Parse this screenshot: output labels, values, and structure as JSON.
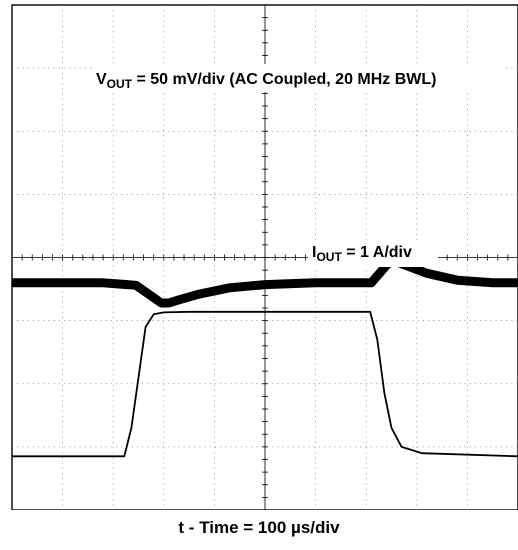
{
  "chart_data": {
    "type": "line",
    "grid": true,
    "divisions": {
      "x": 10,
      "y": 8
    },
    "x_unit_per_div": "100 µs",
    "xlabel": "t - Time = 100 µs/div",
    "x": [
      0,
      0.5,
      1,
      1.5,
      2,
      2.5,
      3,
      3.5,
      4,
      4.5,
      5,
      5.5,
      6,
      6.5,
      7,
      7.5,
      8,
      8.5,
      9,
      9.5,
      10
    ],
    "series": [
      {
        "name": "VOUT",
        "label_main": "V",
        "label_sub": "OUT",
        "label_rest": " = 50 mV/div (AC Coupled, 20 MHz BWL)",
        "color": "#000000",
        "points": [
          [
            0,
            3.6
          ],
          [
            1.8,
            3.6
          ],
          [
            2.45,
            3.56
          ],
          [
            2.95,
            3.28
          ],
          [
            3.1,
            3.28
          ],
          [
            3.3,
            3.33
          ],
          [
            3.7,
            3.42
          ],
          [
            4.3,
            3.52
          ],
          [
            5.0,
            3.57
          ],
          [
            6.0,
            3.6
          ],
          [
            7.0,
            3.6
          ],
          [
            7.1,
            3.6
          ],
          [
            7.5,
            3.97
          ],
          [
            7.7,
            3.9
          ],
          [
            8.2,
            3.75
          ],
          [
            8.8,
            3.64
          ],
          [
            9.5,
            3.6
          ],
          [
            10,
            3.6
          ]
        ]
      },
      {
        "name": "IOUT",
        "label_main": "I",
        "label_sub": "OUT",
        "label_rest": " = 1 A/div",
        "color": "#000000",
        "points": [
          [
            0,
            0.85
          ],
          [
            2.22,
            0.85
          ],
          [
            2.36,
            1.3
          ],
          [
            2.5,
            2.1
          ],
          [
            2.64,
            2.9
          ],
          [
            2.8,
            3.1
          ],
          [
            3.0,
            3.13
          ],
          [
            3.5,
            3.14
          ],
          [
            7.08,
            3.14
          ],
          [
            7.22,
            2.7
          ],
          [
            7.36,
            1.85
          ],
          [
            7.5,
            1.3
          ],
          [
            7.7,
            1.0
          ],
          [
            8.1,
            0.9
          ],
          [
            10,
            0.85
          ]
        ]
      }
    ]
  }
}
